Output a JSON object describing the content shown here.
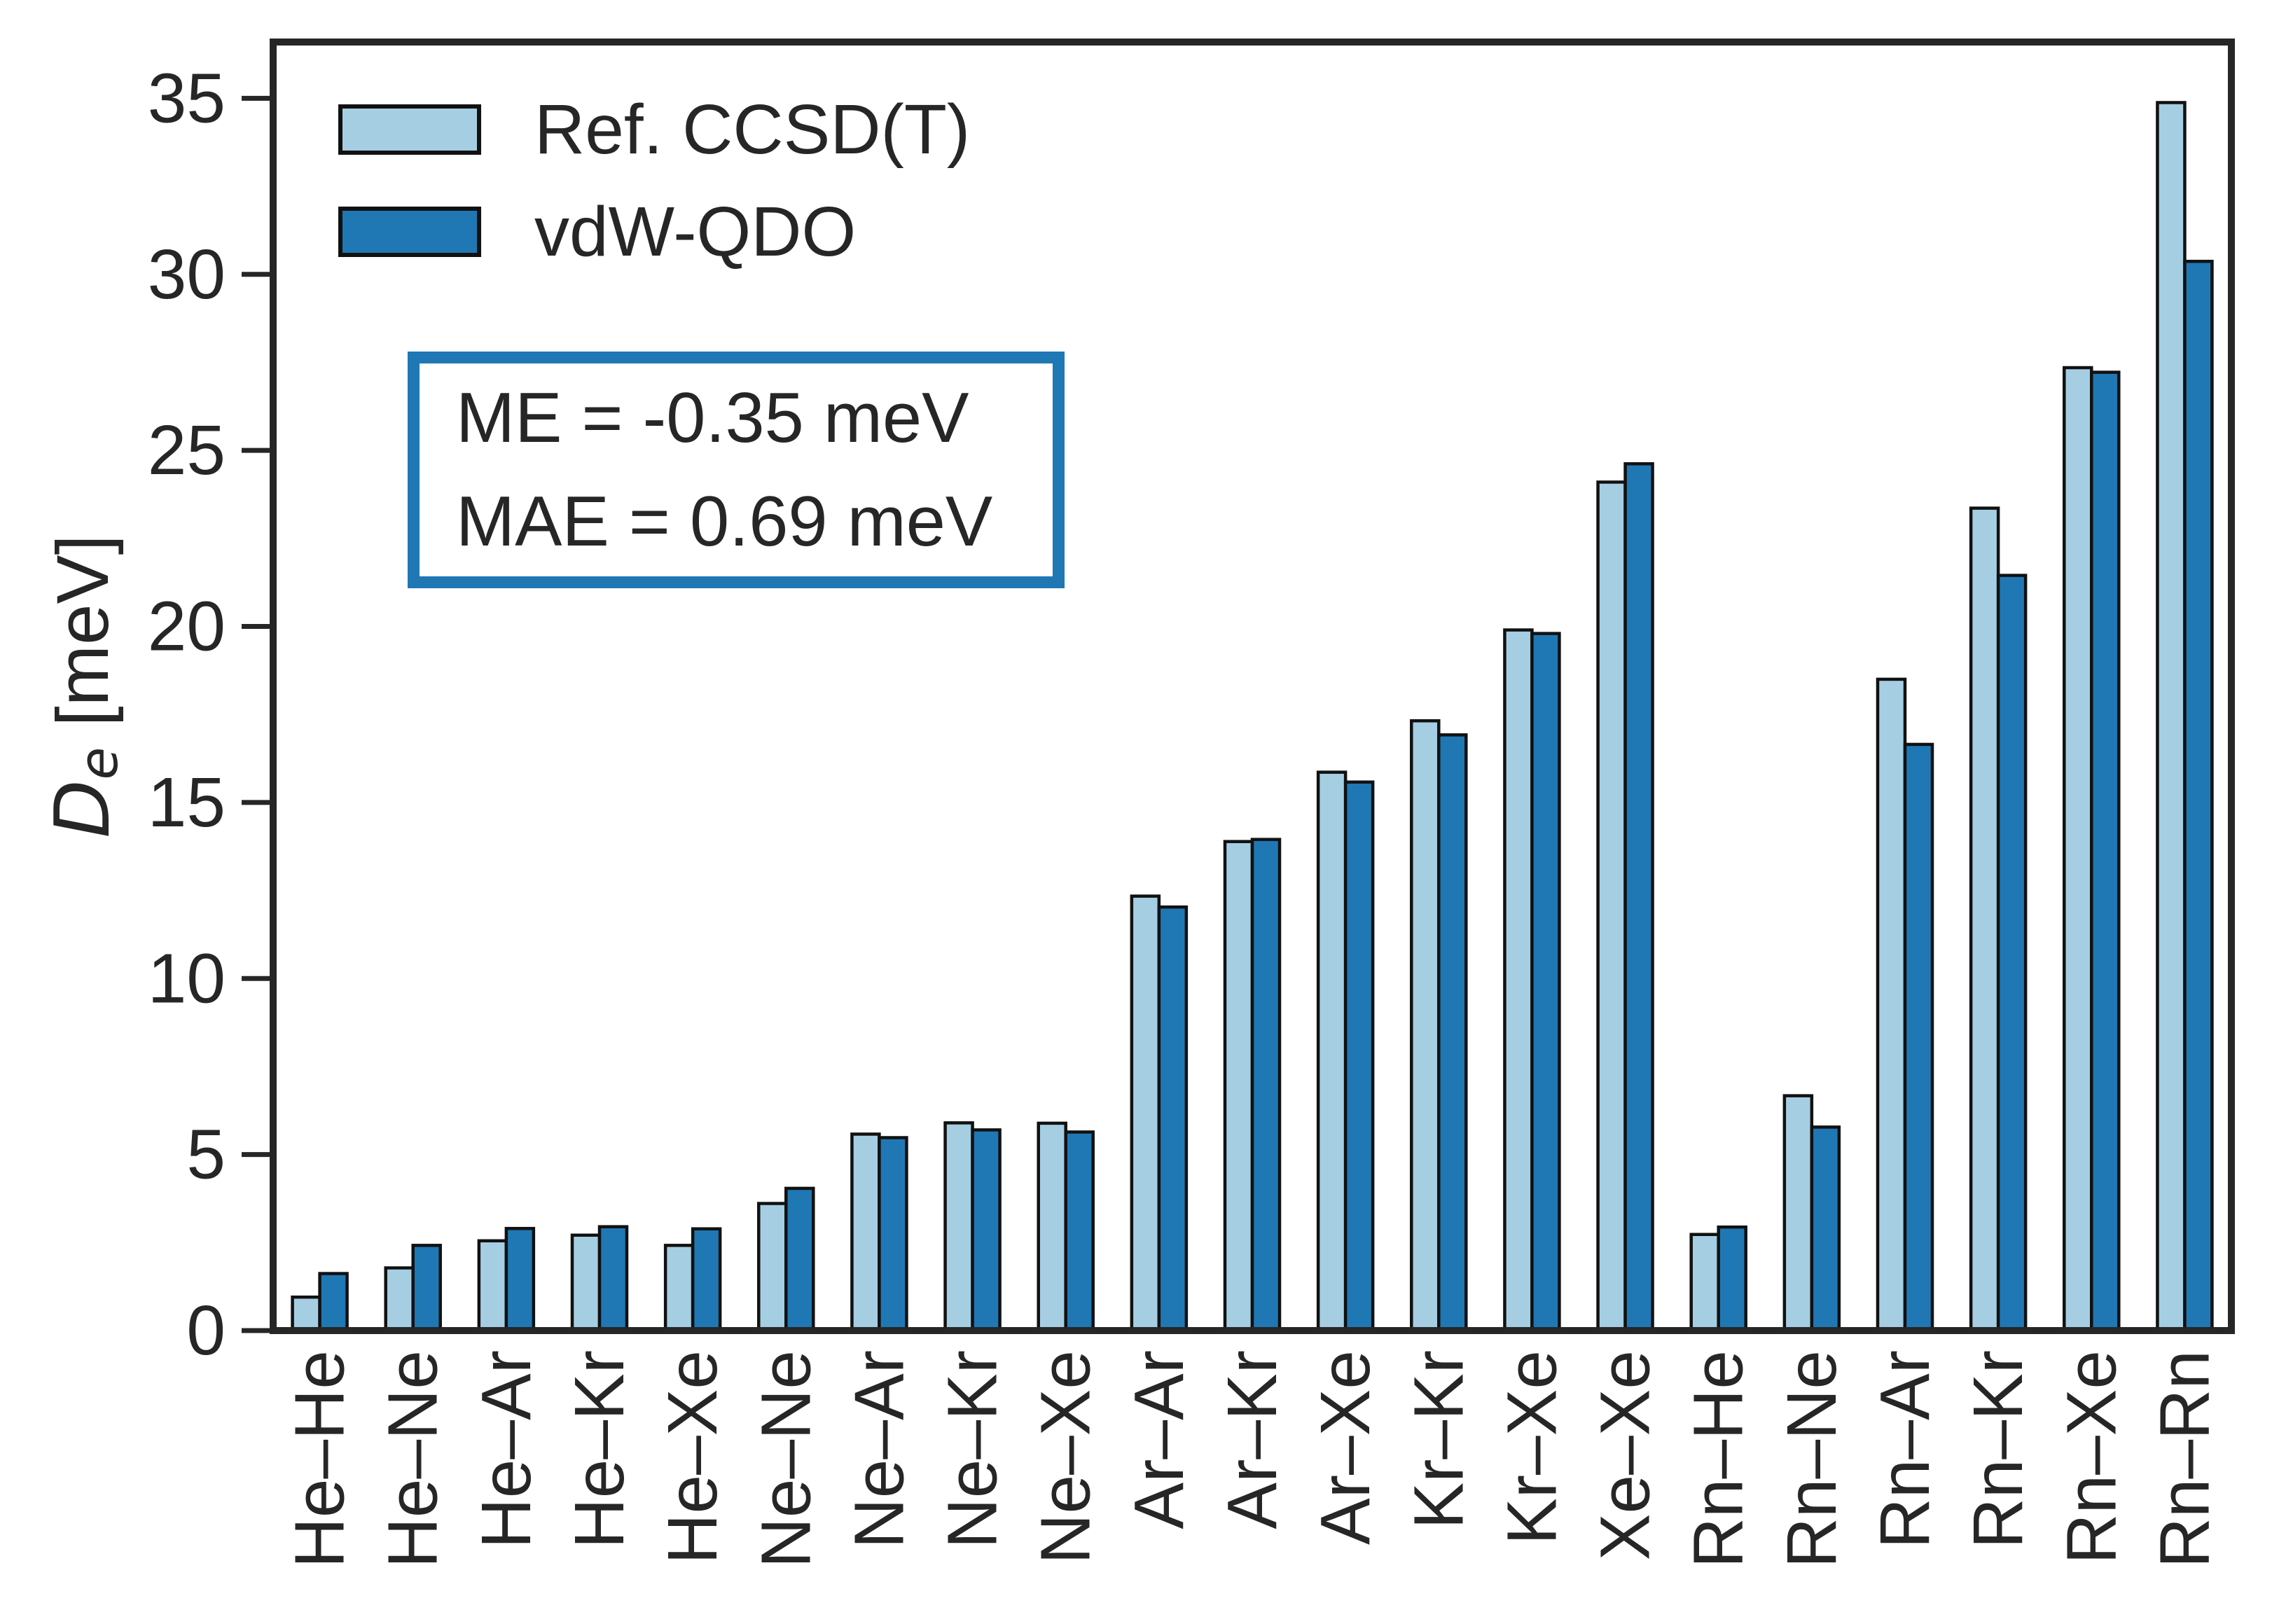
{
  "figure": {
    "background_color": "#ffffff",
    "frame_color": "#262626",
    "tick_color": "#262626",
    "text_color": "#262626",
    "bar_edge_color": "#111111"
  },
  "legend": {
    "items": [
      {
        "label": "Ref. CCSD(T)",
        "color": "#a6cee3"
      },
      {
        "label": "vdW-QDO",
        "color": "#1f78b4"
      }
    ]
  },
  "stats_box": {
    "line1": "ME = -0.35 meV",
    "line2": "MAE = 0.69 meV",
    "border_color": "#1f78b4"
  },
  "chart_data": {
    "type": "bar",
    "title": "",
    "xlabel": "",
    "ylabel": "De [meV]",
    "ylabel_parts": {
      "symbol": "D",
      "subscript": "e",
      "units": "  [meV]"
    },
    "ylim": [
      0,
      36.6
    ],
    "yticks": [
      0,
      5,
      10,
      15,
      20,
      25,
      30,
      35
    ],
    "grid": false,
    "legend_position": "upper left",
    "categories": [
      "He–He",
      "He–Ne",
      "He–Ar",
      "He–Kr",
      "He–Xe",
      "Ne–Ne",
      "Ne–Ar",
      "Ne–Kr",
      "Ne–Xe",
      "Ar–Ar",
      "Ar–Kr",
      "Ar–Xe",
      "Kr–Kr",
      "Kr–Xe",
      "Xe–Xe",
      "Rn–He",
      "Rn–Ne",
      "Rn–Ar",
      "Rn–Kr",
      "Rn–Xe",
      "Rn–Rn"
    ],
    "series": [
      {
        "name": "Ref. CCSD(T)",
        "color": "#a6cee3",
        "values": [
          0.95,
          1.78,
          2.55,
          2.71,
          2.42,
          3.61,
          5.58,
          5.9,
          5.89,
          12.34,
          13.89,
          15.86,
          17.32,
          19.9,
          24.1,
          2.73,
          6.67,
          18.5,
          23.36,
          27.35,
          34.88
        ]
      },
      {
        "name": "vdW-QDO",
        "color": "#1f78b4",
        "values": [
          1.62,
          2.42,
          2.9,
          2.95,
          2.89,
          4.04,
          5.48,
          5.7,
          5.64,
          12.03,
          13.95,
          15.58,
          16.92,
          19.8,
          24.62,
          2.94,
          5.78,
          16.65,
          21.45,
          27.22,
          30.37
        ]
      }
    ]
  }
}
